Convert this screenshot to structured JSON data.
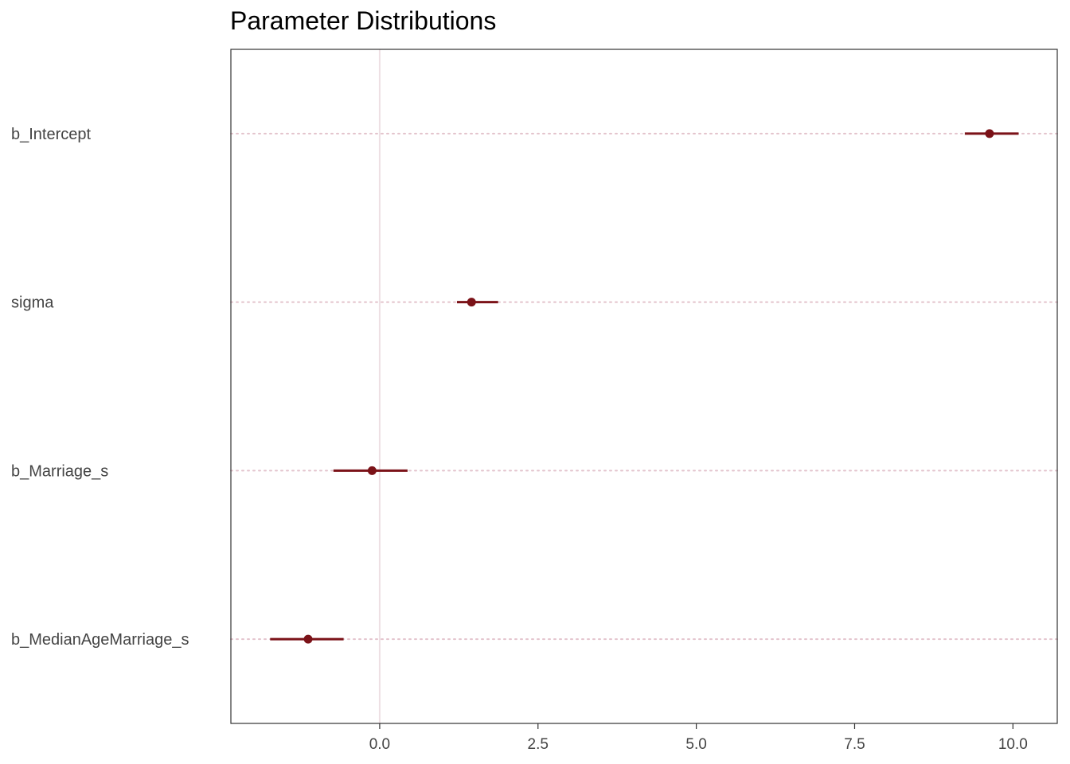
{
  "chart_data": {
    "type": "interval",
    "title": "Parameter Distributions",
    "xlabel": "",
    "ylabel": "",
    "xlim": [
      -2.35,
      10.7
    ],
    "x_ticks": [
      "0.0",
      "2.5",
      "5.0",
      "7.5",
      "10.0"
    ],
    "x_tick_values": [
      0,
      2.5,
      5,
      7.5,
      10
    ],
    "reference_line_x": 0,
    "grid": false,
    "parameters": [
      {
        "name": "b_Intercept",
        "estimate": 9.63,
        "lower": 9.24,
        "upper": 10.09
      },
      {
        "name": "sigma",
        "estimate": 1.45,
        "lower": 1.22,
        "upper": 1.87
      },
      {
        "name": "b_Marriage_s",
        "estimate": -0.12,
        "lower": -0.73,
        "upper": 0.44
      },
      {
        "name": "b_MedianAgeMarriage_s",
        "estimate": -1.13,
        "lower": -1.73,
        "upper": -0.57
      }
    ],
    "colors": {
      "interval": "#7B1218",
      "point": "#7B1218",
      "guide": "#E3C3CC",
      "zero_line": "#EEDFE4",
      "axis": "#333333"
    }
  }
}
